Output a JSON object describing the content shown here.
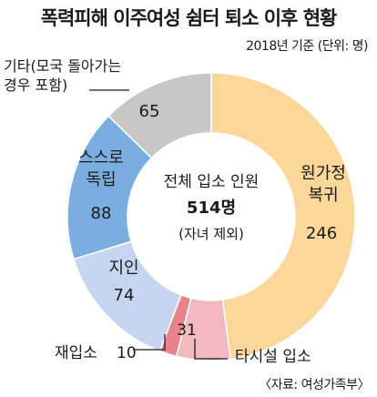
{
  "title": "폭력피해 이주여성 쉼터 퇴소 이후 현황",
  "subtitle": "2018년 기준 (단위: 명)",
  "source": "〈자료: 여성가족부〉",
  "center": {
    "line1": "전체 입소 인원",
    "line2": "514명",
    "line3": "(자녀 제외)"
  },
  "chart_data": {
    "type": "pie",
    "total": 514,
    "slices": [
      {
        "name_lines": [
          "원가정",
          "복귀"
        ],
        "value": 246,
        "color": "#fcd79a"
      },
      {
        "name_lines": [
          "타시설 입소"
        ],
        "value": 31,
        "color": "#f2b9bf"
      },
      {
        "name_lines": [
          "재입소"
        ],
        "value": 10,
        "color": "#e8838c"
      },
      {
        "name_lines": [
          "지인"
        ],
        "value": 74,
        "color": "#c6d6f0"
      },
      {
        "name_lines": [
          "스스로",
          "독립"
        ],
        "value": 88,
        "color": "#7aaee0"
      },
      {
        "name_lines": [
          "기타(모국 돌아가는",
          "경우 포함)"
        ],
        "value": 65,
        "color": "#c7c7c7"
      }
    ]
  }
}
